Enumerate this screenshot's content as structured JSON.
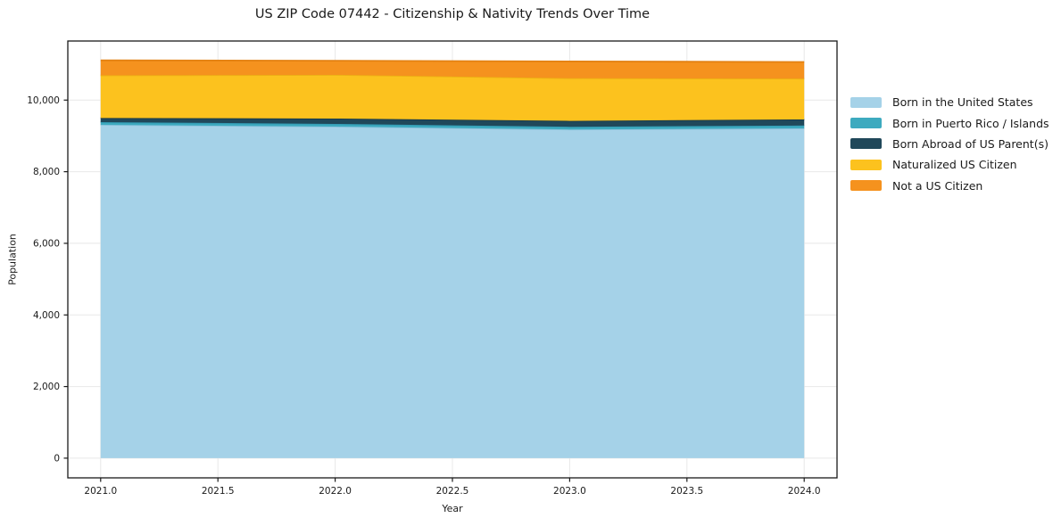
{
  "figure": {
    "title": "US ZIP Code 07442 - Citizenship & Nativity Trends Over Time"
  },
  "chart_data": {
    "type": "area",
    "stacked": true,
    "title": "US ZIP Code 07442 - Citizenship & Nativity Trends Over Time",
    "xlabel": "Year",
    "ylabel": "Population",
    "x": [
      2021,
      2022,
      2023,
      2024
    ],
    "series": [
      {
        "name": "Born in the United States",
        "color": "#a5d2e8",
        "edge": "#8cc3dd",
        "values": [
          9310,
          9260,
          9180,
          9210
        ]
      },
      {
        "name": "Born in Puerto Rico / Islands",
        "color": "#3daabf",
        "edge": "#339ab3",
        "values": [
          75,
          75,
          75,
          80
        ]
      },
      {
        "name": "Born Abroad of US Parent(s)",
        "color": "#20485a",
        "edge": "#183a4a",
        "values": [
          115,
          150,
          165,
          170
        ]
      },
      {
        "name": "Naturalized US Citizen",
        "color": "#fcc21e",
        "edge": "#edb213",
        "values": [
          1190,
          1220,
          1190,
          1140
        ]
      },
      {
        "name": "Not a US Citizen",
        "color": "#f5921e",
        "edge": "#e38112",
        "values": [
          420,
          395,
          470,
          465
        ]
      }
    ],
    "xticks": [
      "2021.0",
      "2021.5",
      "2022.0",
      "2022.5",
      "2023.0",
      "2023.5",
      "2024.0"
    ],
    "xtick_values": [
      2021,
      2021.5,
      2022,
      2022.5,
      2023,
      2023.5,
      2024
    ],
    "yticks": [
      "0",
      "2,000",
      "4,000",
      "6,000",
      "8,000",
      "10,000"
    ],
    "ytick_values": [
      0,
      2000,
      4000,
      6000,
      8000,
      10000
    ],
    "xlim": [
      2020.86,
      2024.14
    ],
    "ylim": [
      -550,
      11650
    ],
    "grid": true,
    "legend_position": "right-outside",
    "colors": {
      "spine": "#1a1a1a",
      "grid": "#e8e8e8",
      "text": "#1a1a1a",
      "background": "#ffffff"
    }
  }
}
